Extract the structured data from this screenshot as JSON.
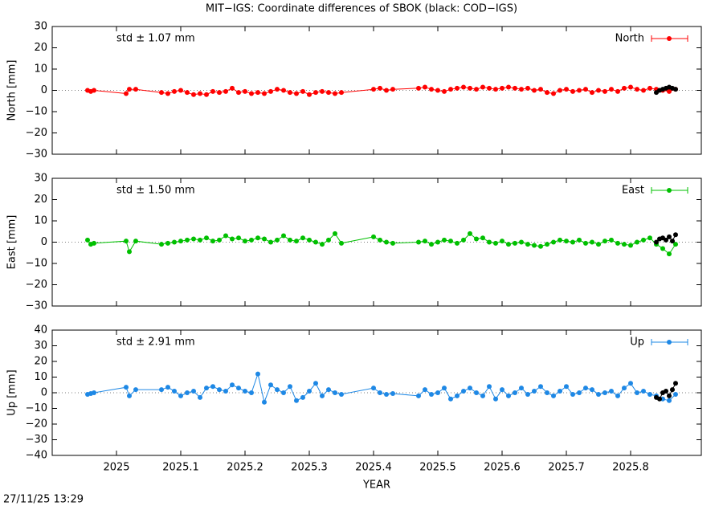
{
  "title": "MIT−IGS: Coordinate differences of SBOK (black: COD−IGS)",
  "timestamp": "27/11/25 13:29",
  "chart_data": [
    {
      "type": "line",
      "ylabel": "North [mm]",
      "annotation": "std ± 1.07 mm",
      "xlim": [
        2024.9,
        2025.91
      ],
      "xticks": [
        2025,
        2025.1,
        2025.2,
        2025.3,
        2025.4,
        2025.5,
        2025.6,
        2025.7,
        2025.8
      ],
      "ylim": [
        -30,
        30
      ],
      "yticks": [
        30,
        20,
        10,
        0,
        {
          "value": -10,
          "label": "−10"
        },
        {
          "value": -20,
          "label": "−20"
        },
        {
          "value": -30,
          "label": "−30"
        }
      ],
      "series": [
        {
          "name": "North",
          "color": "#ff0000",
          "x": [
            2024.955,
            2024.96,
            2024.965,
            2025.015,
            2025.02,
            2025.03,
            2025.07,
            2025.08,
            2025.09,
            2025.1,
            2025.11,
            2025.12,
            2025.13,
            2025.14,
            2025.15,
            2025.16,
            2025.17,
            2025.18,
            2025.19,
            2025.2,
            2025.21,
            2025.22,
            2025.23,
            2025.24,
            2025.25,
            2025.26,
            2025.27,
            2025.28,
            2025.29,
            2025.3,
            2025.31,
            2025.32,
            2025.33,
            2025.34,
            2025.35,
            2025.4,
            2025.41,
            2025.42,
            2025.43,
            2025.47,
            2025.48,
            2025.49,
            2025.5,
            2025.51,
            2025.52,
            2025.53,
            2025.54,
            2025.55,
            2025.56,
            2025.57,
            2025.58,
            2025.59,
            2025.6,
            2025.61,
            2025.62,
            2025.63,
            2025.64,
            2025.65,
            2025.66,
            2025.67,
            2025.68,
            2025.69,
            2025.7,
            2025.71,
            2025.72,
            2025.73,
            2025.74,
            2025.75,
            2025.76,
            2025.77,
            2025.78,
            2025.79,
            2025.8,
            2025.81,
            2025.82,
            2025.83,
            2025.84,
            2025.85,
            2025.86,
            2025.87
          ],
          "values": [
            0,
            -0.5,
            0,
            -1.5,
            0.5,
            0.5,
            -1,
            -1.5,
            -0.5,
            0,
            -1,
            -2,
            -1.5,
            -2,
            -0.5,
            -1,
            -0.5,
            1,
            -1,
            -0.5,
            -1.5,
            -1,
            -1.5,
            -0.5,
            0.5,
            0,
            -1,
            -1.5,
            -0.5,
            -2,
            -1,
            -0.5,
            -1,
            -1.5,
            -1,
            0.5,
            1,
            0,
            0.5,
            1,
            1.5,
            0.5,
            0,
            -0.5,
            0.5,
            1,
            1.5,
            1,
            0.5,
            1.5,
            1,
            0.5,
            1,
            1.5,
            1,
            0.5,
            1,
            0,
            0.5,
            -1,
            -1.5,
            0,
            0.5,
            -0.5,
            0,
            0.5,
            -1,
            0,
            -0.5,
            0.5,
            -0.5,
            1,
            1.5,
            0.5,
            0,
            1,
            0.5,
            0,
            -0.5,
            0.5
          ]
        },
        {
          "color": "#000000",
          "x": [
            2025.84,
            2025.845,
            2025.85,
            2025.855,
            2025.86,
            2025.865,
            2025.87
          ],
          "values": [
            -1,
            0,
            0.5,
            1,
            1.5,
            1,
            0.5
          ]
        }
      ]
    },
    {
      "type": "line",
      "ylabel": "East [mm]",
      "annotation": "std ± 1.50 mm",
      "xlim": [
        2024.9,
        2025.91
      ],
      "xticks": [
        2025,
        2025.1,
        2025.2,
        2025.3,
        2025.4,
        2025.5,
        2025.6,
        2025.7,
        2025.8
      ],
      "ylim": [
        -30,
        30
      ],
      "yticks": [
        30,
        20,
        10,
        0,
        {
          "value": -10,
          "label": "−10"
        },
        {
          "value": -20,
          "label": "−20"
        },
        {
          "value": -30,
          "label": "−30"
        }
      ],
      "series": [
        {
          "name": "East",
          "color": "#00c000",
          "x": [
            2024.955,
            2024.96,
            2024.965,
            2025.015,
            2025.02,
            2025.03,
            2025.07,
            2025.08,
            2025.09,
            2025.1,
            2025.11,
            2025.12,
            2025.13,
            2025.14,
            2025.15,
            2025.16,
            2025.17,
            2025.18,
            2025.19,
            2025.2,
            2025.21,
            2025.22,
            2025.23,
            2025.24,
            2025.25,
            2025.26,
            2025.27,
            2025.28,
            2025.29,
            2025.3,
            2025.31,
            2025.32,
            2025.33,
            2025.34,
            2025.35,
            2025.4,
            2025.41,
            2025.42,
            2025.43,
            2025.47,
            2025.48,
            2025.49,
            2025.5,
            2025.51,
            2025.52,
            2025.53,
            2025.54,
            2025.55,
            2025.56,
            2025.57,
            2025.58,
            2025.59,
            2025.6,
            2025.61,
            2025.62,
            2025.63,
            2025.64,
            2025.65,
            2025.66,
            2025.67,
            2025.68,
            2025.69,
            2025.7,
            2025.71,
            2025.72,
            2025.73,
            2025.74,
            2025.75,
            2025.76,
            2025.77,
            2025.78,
            2025.79,
            2025.8,
            2025.81,
            2025.82,
            2025.83,
            2025.84,
            2025.85,
            2025.86,
            2025.87
          ],
          "values": [
            1,
            -1,
            -0.5,
            0.5,
            -4.5,
            0.5,
            -1,
            -0.5,
            0,
            0.5,
            1,
            1.5,
            1,
            2,
            0.5,
            1,
            3,
            1.5,
            2,
            0.5,
            1,
            2,
            1.5,
            0,
            1,
            3,
            1,
            0.5,
            2,
            1,
            0,
            -1,
            1,
            4,
            -0.5,
            2.5,
            1,
            0,
            -0.5,
            0,
            0.5,
            -1,
            0,
            1,
            0.5,
            -0.5,
            1,
            4,
            1.5,
            2,
            0,
            -0.5,
            0.5,
            -1,
            -0.5,
            0,
            -1,
            -1.5,
            -2,
            -1,
            0,
            1,
            0.5,
            0,
            1,
            -0.5,
            0,
            -1,
            0.5,
            1,
            -0.5,
            -1,
            -1.5,
            0,
            1,
            2,
            -1,
            -3,
            -5.5,
            -1
          ]
        },
        {
          "color": "#000000",
          "x": [
            2025.84,
            2025.845,
            2025.85,
            2025.855,
            2025.86,
            2025.865,
            2025.87
          ],
          "values": [
            0,
            1.5,
            2,
            1,
            2.5,
            0.5,
            3.5
          ]
        }
      ]
    },
    {
      "type": "line",
      "ylabel": "Up [mm]",
      "annotation": "std ± 2.91 mm",
      "xlabel": "YEAR",
      "xlim": [
        2024.9,
        2025.91
      ],
      "xticks": [
        2025,
        2025.1,
        2025.2,
        2025.3,
        2025.4,
        2025.5,
        2025.6,
        2025.7,
        2025.8
      ],
      "ylim": [
        -40,
        40
      ],
      "yticks": [
        40,
        30,
        20,
        10,
        0,
        {
          "value": -10,
          "label": "−10"
        },
        {
          "value": -20,
          "label": "−20"
        },
        {
          "value": -30,
          "label": "−30"
        },
        {
          "value": -40,
          "label": "−40"
        }
      ],
      "series": [
        {
          "name": "Up",
          "color": "#1e88e5",
          "x": [
            2024.955,
            2024.96,
            2024.965,
            2025.015,
            2025.02,
            2025.03,
            2025.07,
            2025.08,
            2025.09,
            2025.1,
            2025.11,
            2025.12,
            2025.13,
            2025.14,
            2025.15,
            2025.16,
            2025.17,
            2025.18,
            2025.19,
            2025.2,
            2025.21,
            2025.22,
            2025.23,
            2025.24,
            2025.25,
            2025.26,
            2025.27,
            2025.28,
            2025.29,
            2025.3,
            2025.31,
            2025.32,
            2025.33,
            2025.34,
            2025.35,
            2025.4,
            2025.41,
            2025.42,
            2025.43,
            2025.47,
            2025.48,
            2025.49,
            2025.5,
            2025.51,
            2025.52,
            2025.53,
            2025.54,
            2025.55,
            2025.56,
            2025.57,
            2025.58,
            2025.59,
            2025.6,
            2025.61,
            2025.62,
            2025.63,
            2025.64,
            2025.65,
            2025.66,
            2025.67,
            2025.68,
            2025.69,
            2025.7,
            2025.71,
            2025.72,
            2025.73,
            2025.74,
            2025.75,
            2025.76,
            2025.77,
            2025.78,
            2025.79,
            2025.8,
            2025.81,
            2025.82,
            2025.83,
            2025.84,
            2025.85,
            2025.86,
            2025.87
          ],
          "values": [
            -1,
            -0.5,
            0,
            3.5,
            -2,
            2,
            2,
            3.5,
            1,
            -2,
            0,
            1,
            -3,
            3,
            4,
            2,
            1,
            5,
            3,
            1,
            0,
            12,
            -6,
            5,
            2,
            0,
            4,
            -5,
            -3,
            1,
            6,
            -2,
            2,
            0,
            -1,
            3,
            0,
            -1,
            -0.5,
            -2,
            2,
            -1,
            0,
            3,
            -4,
            -2,
            1,
            3,
            0,
            -2,
            4,
            -4,
            2,
            -2,
            0,
            3,
            -1,
            1,
            4,
            0,
            -2,
            1,
            4,
            -1,
            0,
            3,
            2,
            -1,
            0,
            1,
            -2,
            3,
            6,
            0,
            1,
            -1,
            -2,
            -4,
            -5,
            -1
          ]
        },
        {
          "color": "#000000",
          "x": [
            2025.84,
            2025.845,
            2025.85,
            2025.855,
            2025.86,
            2025.865,
            2025.87
          ],
          "values": [
            -3,
            -4,
            0,
            1,
            -2,
            2,
            6
          ]
        }
      ]
    }
  ]
}
